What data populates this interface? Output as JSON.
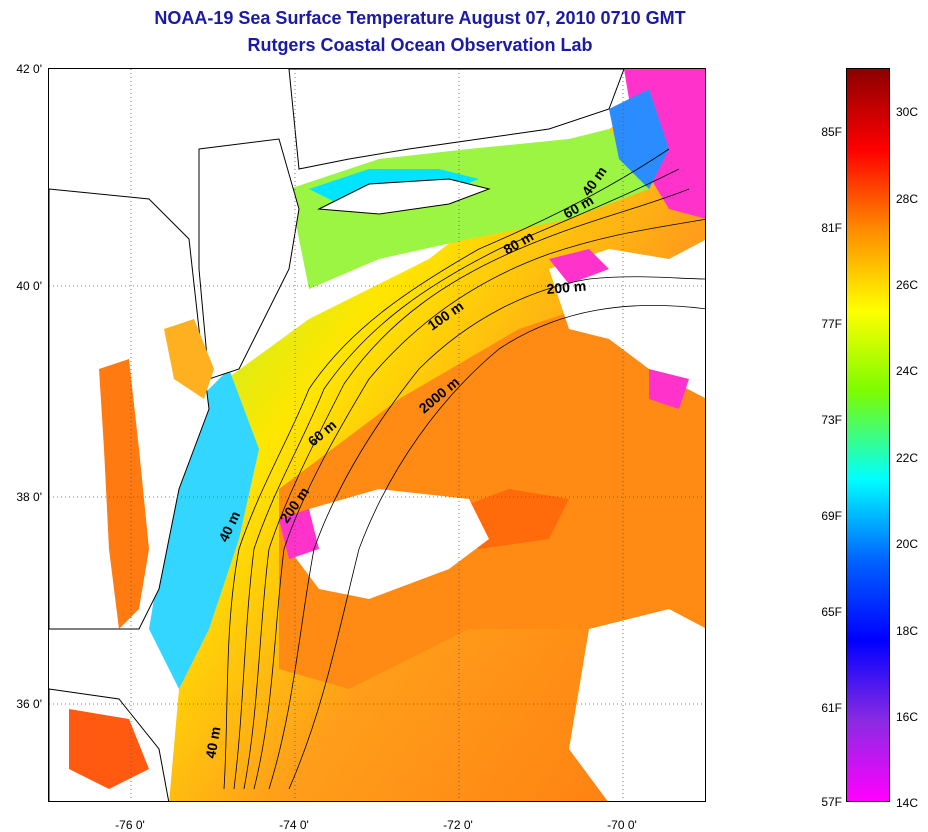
{
  "title": {
    "line1": "NOAA-19 Sea Surface Temperature August 07, 2010 0710 GMT",
    "line2": "Rutgers Coastal Ocean Observation Lab"
  },
  "axes": {
    "lat_labels": [
      "42 0'",
      "40 0'",
      "38 0'",
      "36 0'"
    ],
    "lon_labels": [
      "-76 0'",
      "-74 0'",
      "-72 0'",
      "-70 0'"
    ]
  },
  "depth_contours": [
    "40 m",
    "60 m",
    "80 m",
    "200 m",
    "100 m",
    "2000 m",
    "60 m",
    "200 m",
    "40 m",
    "40 m"
  ],
  "colorbar": {
    "fahrenheit": [
      "85F",
      "81F",
      "77F",
      "73F",
      "69F",
      "65F",
      "61F",
      "57F"
    ],
    "celsius": [
      "30C",
      "28C",
      "26C",
      "24C",
      "22C",
      "20C",
      "18C",
      "16C",
      "14C"
    ],
    "colors": [
      "#8b0000",
      "#ff0000",
      "#ff8c00",
      "#ffff00",
      "#7cfc00",
      "#00ffff",
      "#0064ff",
      "#0000ff",
      "#8a2be2",
      "#ff00ff"
    ]
  }
}
